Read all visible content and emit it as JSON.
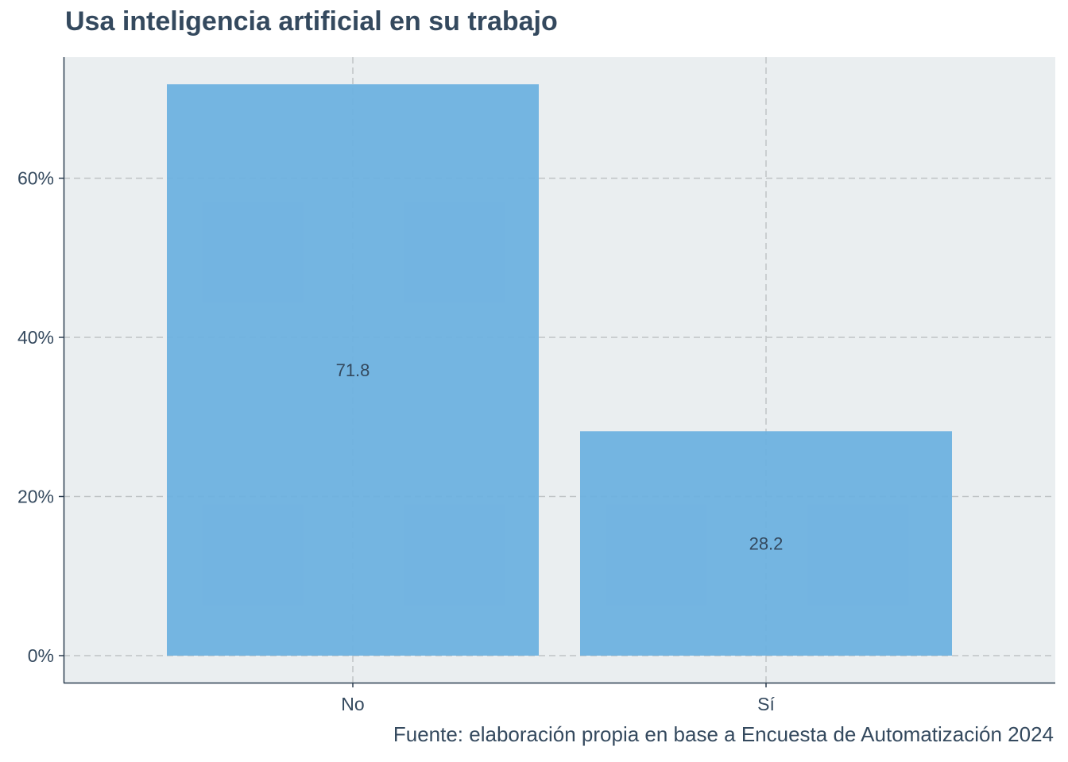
{
  "chart_data": {
    "type": "bar",
    "title": "Usa inteligencia artificial en su trabajo",
    "caption": "Fuente: elaboración propia en base a Encuesta de Automatización 2024",
    "categories": [
      "No",
      "Sí"
    ],
    "values": [
      71.8,
      28.2
    ],
    "data_labels": [
      "71.8",
      "28.2"
    ],
    "ylim": [
      0,
      75.5
    ],
    "yticks": [
      0,
      20,
      40,
      60
    ],
    "ytick_labels": [
      "0%",
      "20%",
      "40%",
      "60%"
    ],
    "grid": true,
    "colors": {
      "bar": "#6ab0e0",
      "panel": "#eaeef0",
      "grid": "#c0c4c6",
      "text": "#34495e"
    }
  }
}
